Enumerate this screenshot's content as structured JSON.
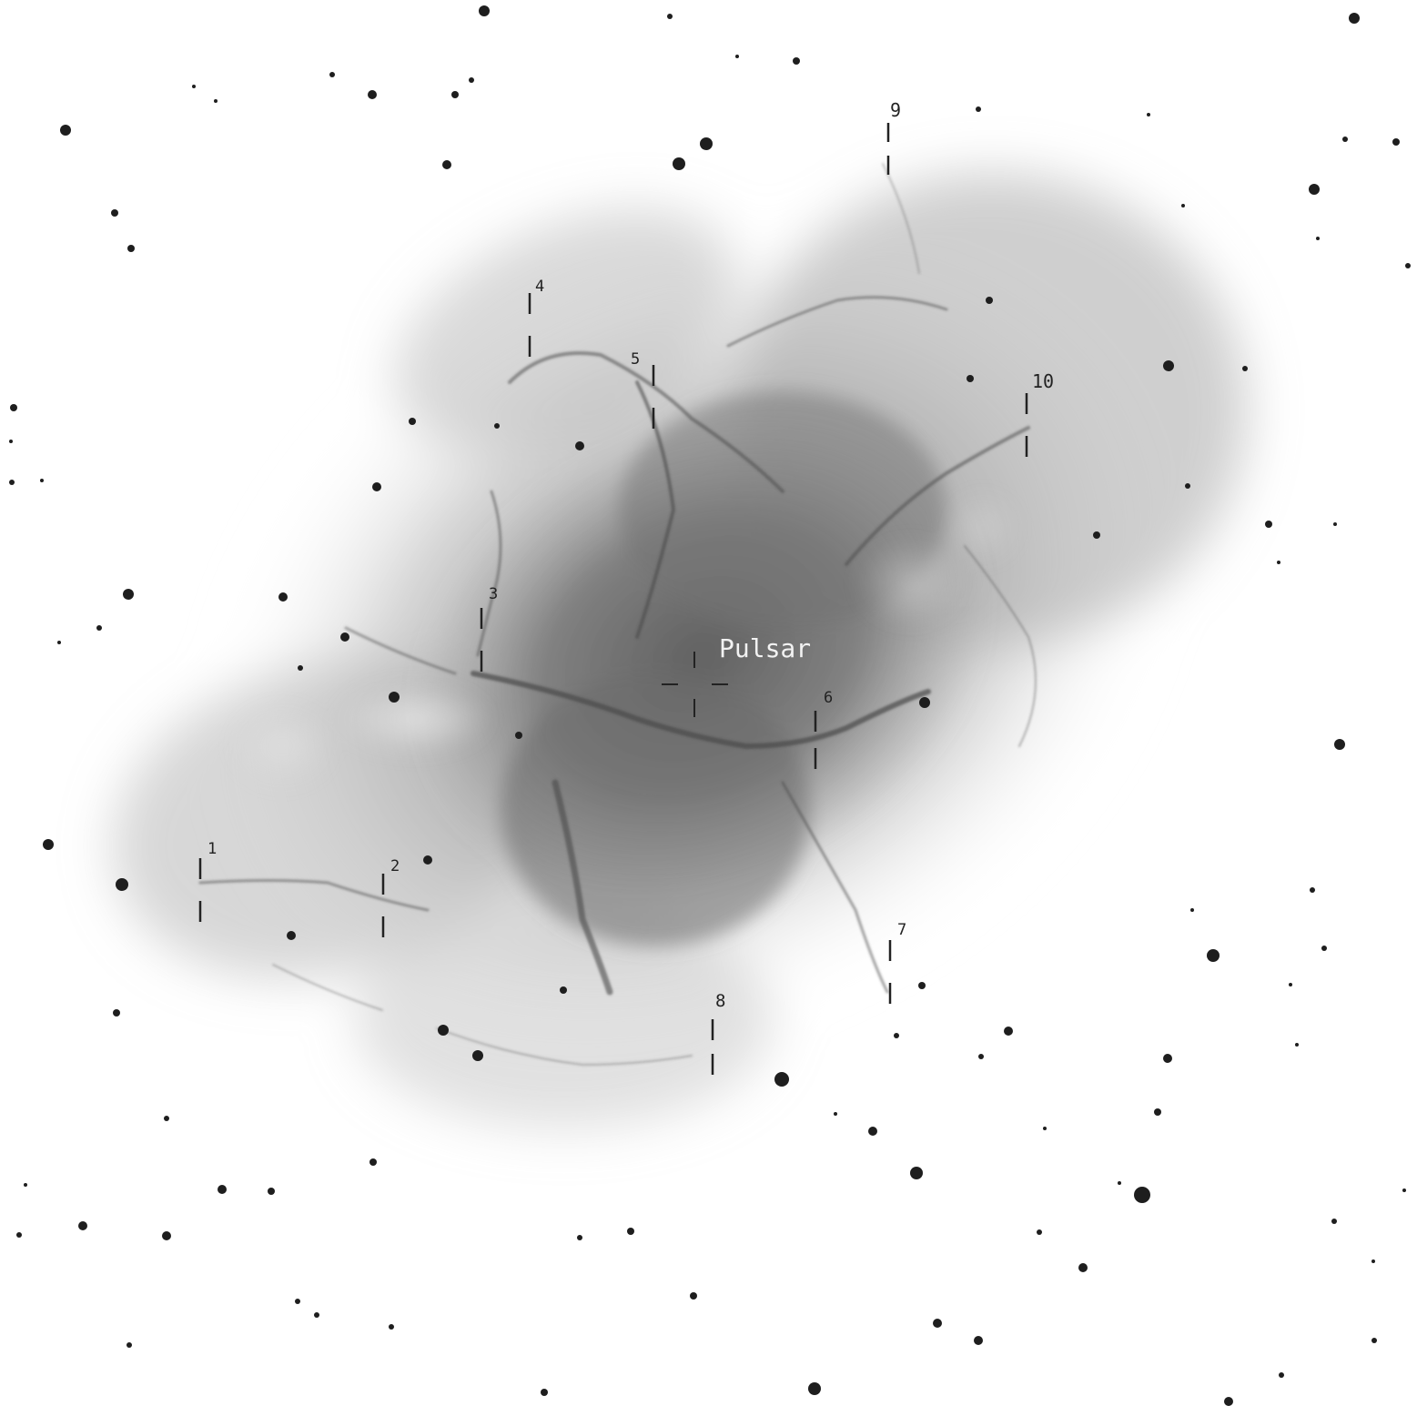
{
  "image": {
    "colors": {
      "background": "#ffffff",
      "star": "#1e1e1e",
      "nebula": "#6a6a6a",
      "marker": "#222222",
      "pulsar_label": "#f2f2f2"
    }
  },
  "labels": {
    "pulsar": "Pulsar",
    "markers": [
      "1",
      "2",
      "3",
      "4",
      "5",
      "6",
      "7",
      "8",
      "9",
      "10"
    ]
  }
}
